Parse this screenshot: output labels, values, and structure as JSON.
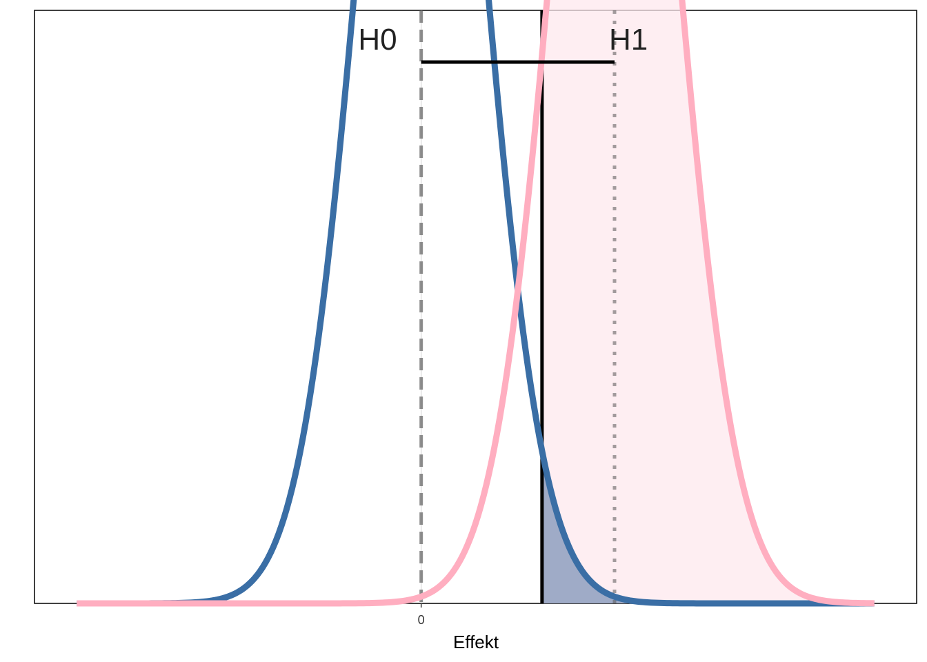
{
  "chart_data": {
    "type": "line",
    "title": "",
    "xlabel": "Effekt",
    "ylabel": "",
    "xlim": [
      -3.2,
      4.1
    ],
    "ylim": [
      0,
      0.42
    ],
    "x_ticks": [
      0
    ],
    "x_tick_labels": [
      "0"
    ],
    "grid": false,
    "critical_value": 1.0,
    "annotations": {
      "h0_label": "H0",
      "h1_label": "H1",
      "h0_mean": 0,
      "h1_mean": 1.6
    },
    "series": [
      {
        "name": "",
        "distribution": "normal",
        "mean": 0,
        "sd": 0.5,
        "color": "#3a6ea5",
        "shade_above": 1.0,
        "shade_color": "#9aa6c4"
      },
      {
        "name": "",
        "distribution": "normal",
        "mean": 1.6,
        "sd": 0.5,
        "color": "#ffaec0",
        "shade_above": 1.0,
        "shade_color": "#fde8ee"
      }
    ]
  }
}
